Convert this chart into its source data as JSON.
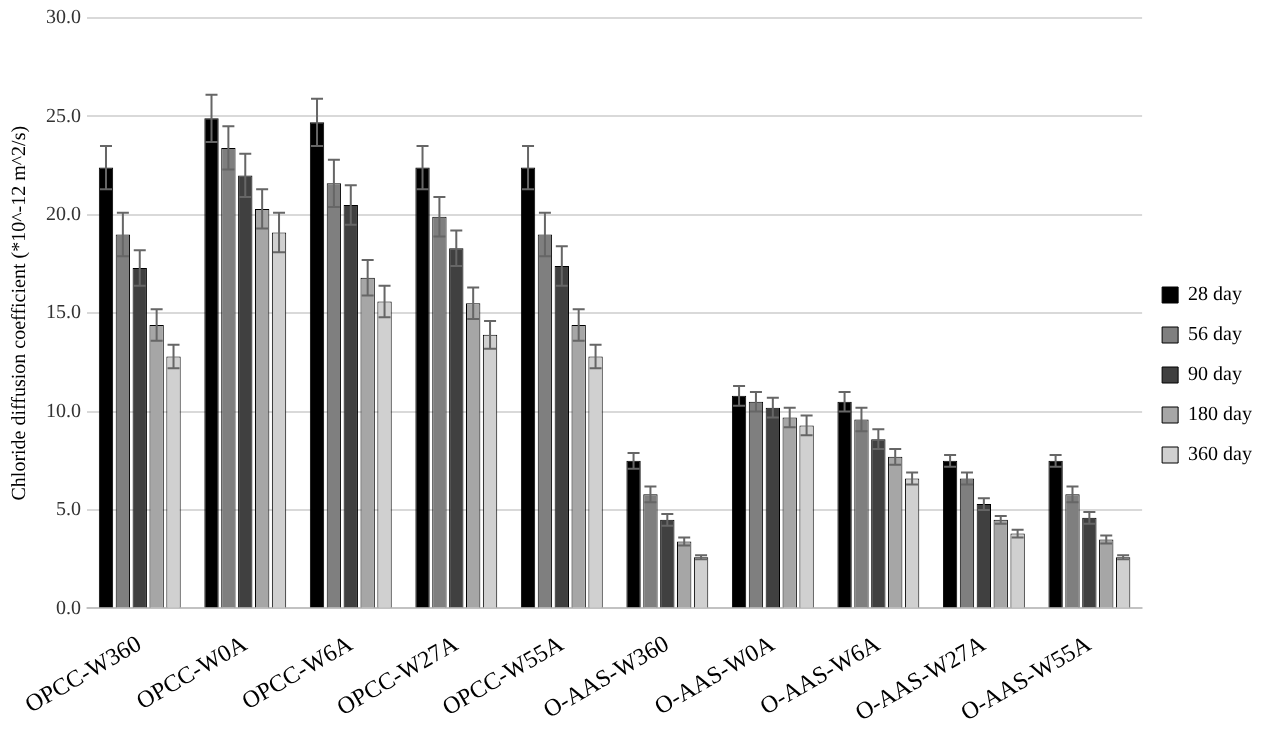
{
  "chart_data": {
    "type": "bar",
    "ylabel": "Chloride diffusion coefficient (*10^-12 m^2/s)",
    "categories": [
      "OPCC-W360",
      "OPCC-W0A",
      "OPCC-W6A",
      "OPCC-W27A",
      "OPCC-W55A",
      "O-AAS-W360",
      "O-AAS-W0A",
      "O-AAS-W6A",
      "O-AAS-W27A",
      "O-AAS-W55A"
    ],
    "series": [
      {
        "name": "28 day",
        "color": "#000000",
        "values": [
          22.4,
          24.9,
          24.7,
          22.4,
          22.4,
          7.5,
          10.8,
          10.5,
          7.5,
          7.5
        ],
        "errors": [
          1.1,
          1.2,
          1.2,
          1.1,
          1.1,
          0.4,
          0.5,
          0.5,
          0.3,
          0.3
        ]
      },
      {
        "name": "56 day",
        "color": "#7f7f7f",
        "values": [
          19.0,
          23.4,
          21.6,
          19.9,
          19.0,
          5.8,
          10.5,
          9.6,
          6.6,
          5.8
        ],
        "errors": [
          1.1,
          1.1,
          1.2,
          1.0,
          1.1,
          0.4,
          0.5,
          0.6,
          0.3,
          0.4
        ]
      },
      {
        "name": "90 day",
        "color": "#404040",
        "values": [
          17.3,
          22.0,
          20.5,
          18.3,
          17.4,
          4.5,
          10.2,
          8.6,
          5.3,
          4.6
        ],
        "errors": [
          0.9,
          1.1,
          1.0,
          0.9,
          1.0,
          0.3,
          0.5,
          0.5,
          0.3,
          0.3
        ]
      },
      {
        "name": "180 day",
        "color": "#a6a6a6",
        "values": [
          14.4,
          20.3,
          16.8,
          15.5,
          14.4,
          3.4,
          9.7,
          7.7,
          4.5,
          3.5
        ],
        "errors": [
          0.8,
          1.0,
          0.9,
          0.8,
          0.8,
          0.2,
          0.5,
          0.4,
          0.2,
          0.2
        ]
      },
      {
        "name": "360 day",
        "color": "#d0d0d0",
        "values": [
          12.8,
          19.1,
          15.6,
          13.9,
          12.8,
          2.6,
          9.3,
          6.6,
          3.8,
          2.6
        ],
        "errors": [
          0.6,
          1.0,
          0.8,
          0.7,
          0.6,
          0.1,
          0.5,
          0.3,
          0.2,
          0.1
        ]
      }
    ],
    "ylim": [
      0,
      30
    ],
    "yticks": [
      {
        "value": 0,
        "label": "0.0"
      },
      {
        "value": 5,
        "label": "5.0"
      },
      {
        "value": 10,
        "label": "10.0"
      },
      {
        "value": 15,
        "label": "15.0"
      },
      {
        "value": 20,
        "label": "20.0"
      },
      {
        "value": 25,
        "label": "25.0"
      },
      {
        "value": 30,
        "label": "30.0"
      }
    ],
    "grid": "y",
    "legend": "right"
  }
}
